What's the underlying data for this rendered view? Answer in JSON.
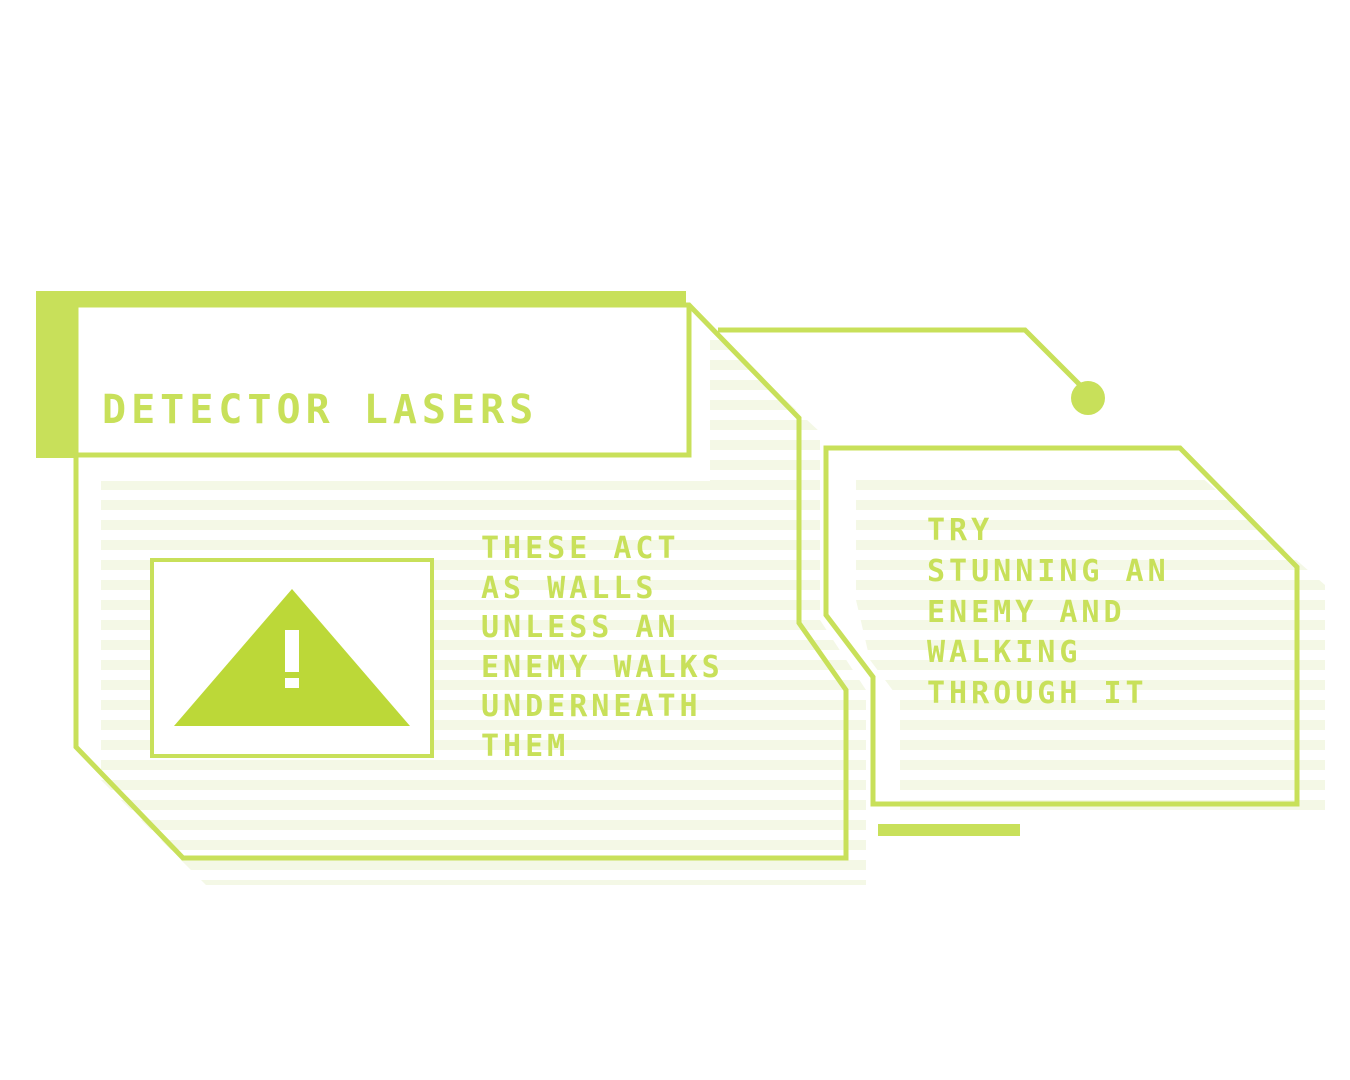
{
  "colors": {
    "accent": "#c8e05a",
    "warning_icon": "#bcd838",
    "stripe": "#f4f8e6",
    "background": "#ffffff"
  },
  "title_box": {
    "title": "DETECTOR LASERS"
  },
  "main_panel": {
    "icon": "warning-triangle-icon",
    "lines": [
      "THESE ACT",
      "AS WALLS",
      "UNLESS AN",
      "ENEMY WALKS",
      "UNDERNEATH",
      "THEM"
    ]
  },
  "side_panel": {
    "lines": [
      "TRY",
      "STUNNING AN",
      "ENEMY AND",
      "WALKING",
      "THROUGH IT"
    ]
  }
}
